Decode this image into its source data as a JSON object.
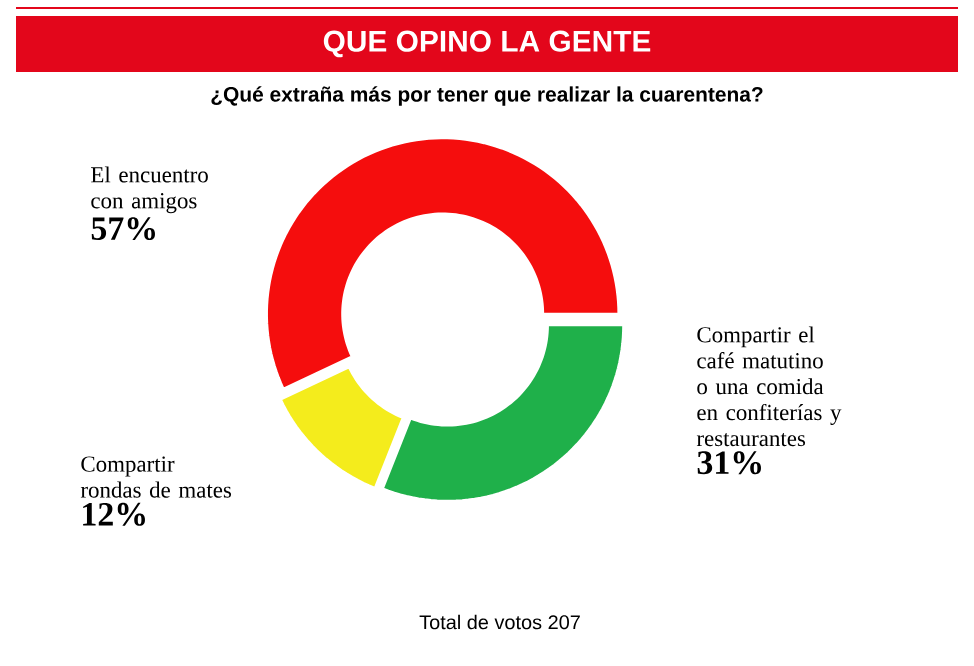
{
  "chart_data": {
    "type": "donut",
    "title": "QUE OPINO LA GENTE",
    "subtitle": "¿Qué extraña más por tener que realizar la cuarentena?",
    "categories": [
      "El encuentro con amigos",
      "Compartir el café matutino o una comida en confiterías y restaurantes",
      "Compartir rondas de mates"
    ],
    "values": [
      57,
      31,
      12
    ],
    "colors": [
      "#f50d0d",
      "#1fb04a",
      "#f4ec1c"
    ],
    "value_labels": [
      "57%",
      "31%",
      "12%"
    ],
    "annotations": [
      "Total de votos 207"
    ]
  }
}
